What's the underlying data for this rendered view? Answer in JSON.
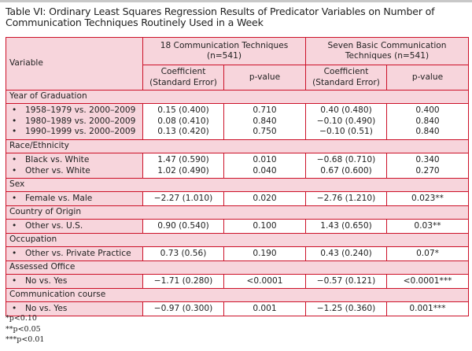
{
  "title": "Table VI: Ordinary Least Squares Regression Results of Predicator Variables on Number of Communication Techniques Routinely Used in a Week",
  "header": {
    "variable": "Variable",
    "group1": "18 Communication Techniques (n=541)",
    "group2": "Seven Basic Communication Techniques (n=541)",
    "coef": "Coefficient (Standard Error)",
    "pval": "p-value"
  },
  "sections": [
    {
      "name": "Year of Graduation",
      "rows": [
        {
          "label": "1958–1979 vs. 2000–2009",
          "c1": "0.15 (0.400)",
          "p1": "0.710",
          "c2": "0.40 (0.480)",
          "p2": "0.400"
        },
        {
          "label": "1980–1989 vs. 2000–2009",
          "c1": "0.08 (0.410)",
          "p1": "0.840",
          "c2": "−0.10 (0.490)",
          "p2": "0.840"
        },
        {
          "label": "1990–1999 vs. 2000–2009",
          "c1": "0.13 (0.420)",
          "p1": "0.750",
          "c2": "−0.10 (0.51)",
          "p2": "0.840"
        }
      ]
    },
    {
      "name": "Race/Ethnicity",
      "rows": [
        {
          "label": "Black vs. White",
          "c1": "1.47 (0.590)",
          "p1": "0.010",
          "c2": "−0.68 (0.710)",
          "p2": "0.340"
        },
        {
          "label": "Other vs. White",
          "c1": "1.02 (0.490)",
          "p1": "0.040",
          "c2": "0.67 (0.600)",
          "p2": "0.270"
        }
      ]
    },
    {
      "name": "Sex",
      "rows": [
        {
          "label": "Female vs. Male",
          "c1": "−2.27 (1.010)",
          "p1": "0.020",
          "c2": "−2.76 (1.210)",
          "p2": "0.023**"
        }
      ]
    },
    {
      "name": "Country of Origin",
      "rows": [
        {
          "label": "Other vs. U.S.",
          "c1": "0.90 (0.540)",
          "p1": "0.100",
          "c2": "1.43 (0.650)",
          "p2": "0.03**"
        }
      ]
    },
    {
      "name": "Occupation",
      "rows": [
        {
          "label": "Other vs. Private Practice",
          "c1": "0.73 (0.56)",
          "p1": "0.190",
          "c2": "0.43 (0.240)",
          "p2": "0.07*"
        }
      ]
    },
    {
      "name": "Assessed Office",
      "rows": [
        {
          "label": "No vs. Yes",
          "c1": "−1.71 (0.280)",
          "p1": "<0.0001",
          "c2": "−0.57 (0.121)",
          "p2": "<0.0001***"
        }
      ]
    },
    {
      "name": "Communication course",
      "rows": [
        {
          "label": "No vs. Yes",
          "c1": "−0.97 (0.300)",
          "p1": "0.001",
          "c2": "−1.25 (0.360)",
          "p2": "0.001***"
        }
      ]
    }
  ],
  "footnotes": [
    "*p<0.10",
    "**p<0.05",
    "***p<0.01"
  ],
  "colors": {
    "border": "#cc1128",
    "shade": "#f7d5dc"
  }
}
